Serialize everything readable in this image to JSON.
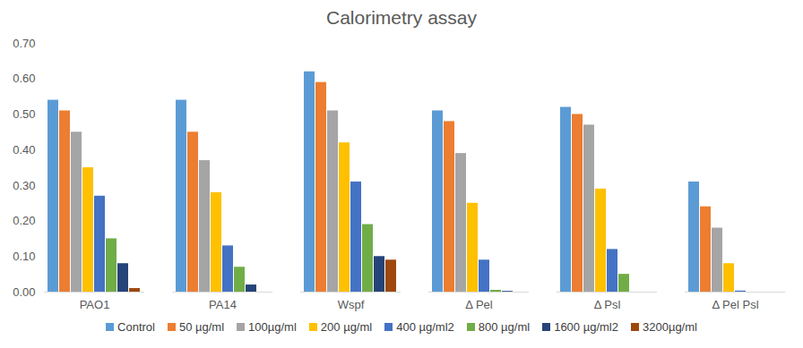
{
  "chart_data": {
    "type": "bar",
    "title": "Calorimetry assay",
    "categories": [
      "PAO1",
      "PA14",
      "Wspf",
      "Δ Pel",
      "Δ Psl",
      "Δ Pel Psl"
    ],
    "series": [
      {
        "name": "Control",
        "color": "#5B9BD5",
        "values": [
          0.54,
          0.54,
          0.62,
          0.51,
          0.52,
          0.31
        ]
      },
      {
        "name": "50 µg/ml",
        "color": "#ED7D31",
        "values": [
          0.51,
          0.45,
          0.59,
          0.48,
          0.5,
          0.24
        ]
      },
      {
        "name": "100µg/ml",
        "color": "#A5A5A5",
        "values": [
          0.45,
          0.37,
          0.51,
          0.39,
          0.47,
          0.18
        ]
      },
      {
        "name": "200 µg/ml",
        "color": "#FFC000",
        "values": [
          0.35,
          0.28,
          0.42,
          0.25,
          0.29,
          0.08
        ]
      },
      {
        "name": "400 µg/ml2",
        "color": "#4472C4",
        "values": [
          0.27,
          0.13,
          0.31,
          0.09,
          0.12,
          0.003
        ]
      },
      {
        "name": "800 µg/ml",
        "color": "#70AD47",
        "values": [
          0.15,
          0.07,
          0.19,
          0.005,
          0.05,
          0
        ]
      },
      {
        "name": "1600 µg/ml2",
        "color": "#264478",
        "values": [
          0.08,
          0.02,
          0.1,
          0.002,
          0,
          0
        ]
      },
      {
        "name": "3200µg/ml",
        "color": "#9E480E",
        "values": [
          0.01,
          0,
          0.09,
          0,
          0,
          0
        ]
      }
    ],
    "ylim": [
      0,
      0.7
    ],
    "yticks": [
      0,
      0.1,
      0.2,
      0.3,
      0.4,
      0.5,
      0.6,
      0.7
    ],
    "grid": false,
    "legend": "bottom"
  }
}
